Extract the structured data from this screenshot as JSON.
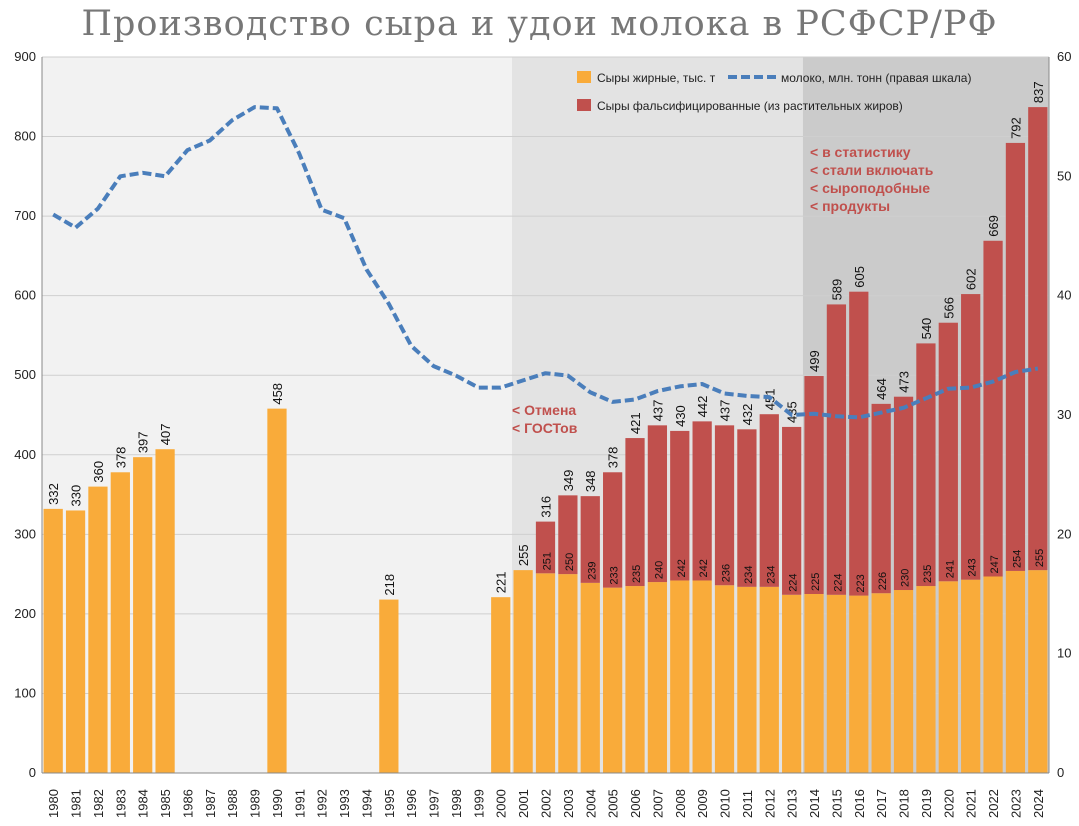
{
  "chart_data": {
    "type": "bar",
    "title": "Производство сыра и удои молока в РСФСР/РФ",
    "categories": [
      "1980",
      "1981",
      "1982",
      "1983",
      "1984",
      "1985",
      "1986",
      "1987",
      "1988",
      "1989",
      "1990",
      "1991",
      "1992",
      "1993",
      "1994",
      "1995",
      "1996",
      "1997",
      "1998",
      "1999",
      "2000",
      "2001",
      "2002",
      "2003",
      "2004",
      "2005",
      "2006",
      "2007",
      "2008",
      "2009",
      "2010",
      "2011",
      "2012",
      "2013",
      "2014",
      "2015",
      "2016",
      "2017",
      "2018",
      "2019",
      "2020",
      "2021",
      "2022",
      "2023",
      "2024"
    ],
    "series": [
      {
        "name": "Сыры жирные, тыс. т",
        "color": "#f9ab3a",
        "values": [
          332,
          330,
          360,
          378,
          397,
          407,
          null,
          null,
          null,
          null,
          458,
          null,
          null,
          null,
          null,
          218,
          null,
          null,
          null,
          null,
          221,
          255,
          251,
          250,
          239,
          233,
          235,
          240,
          242,
          242,
          236,
          234,
          234,
          224,
          225,
          224,
          223,
          226,
          230,
          235,
          241,
          243,
          247,
          254,
          255
        ],
        "labels": [
          "332",
          "330",
          "360",
          "378",
          "397",
          "407",
          "",
          "",
          "",
          "",
          "458",
          "",
          "",
          "",
          "",
          "218",
          "",
          "",
          "",
          "",
          "221",
          "255",
          "251",
          "250",
          "239",
          "233",
          "235",
          "240",
          "242",
          "242",
          "236",
          "234",
          "234",
          "224",
          "225",
          "224",
          "223",
          "226",
          "230",
          "235",
          "241",
          "243",
          "247",
          "254",
          "255"
        ]
      },
      {
        "name": "Сыры фальсифицированные (из растительных жиров)",
        "color": "#c0504d",
        "values": [
          null,
          null,
          null,
          null,
          null,
          null,
          null,
          null,
          null,
          null,
          null,
          null,
          null,
          null,
          null,
          null,
          null,
          null,
          null,
          null,
          null,
          null,
          65,
          99,
          109,
          145,
          186,
          197,
          188,
          200,
          201,
          198,
          217,
          211,
          274,
          365,
          382,
          238,
          243,
          305,
          325,
          359,
          422,
          538,
          582
        ],
        "totals": [
          null,
          null,
          null,
          null,
          null,
          null,
          null,
          null,
          null,
          null,
          null,
          null,
          null,
          null,
          null,
          null,
          null,
          null,
          null,
          null,
          null,
          null,
          316,
          349,
          348,
          378,
          421,
          437,
          430,
          442,
          437,
          432,
          451,
          435,
          499,
          589,
          605,
          464,
          473,
          540,
          566,
          602,
          669,
          792,
          837
        ],
        "total_labels": [
          "",
          "",
          "",
          "",
          "",
          "",
          "",
          "",
          "",
          "",
          "",
          "",
          "",
          "",
          "",
          "",
          "",
          "",
          "",
          "",
          "",
          "",
          "316",
          "349",
          "348",
          "378",
          "421",
          "437",
          "430",
          "442",
          "437",
          "432",
          "451",
          "435",
          "499",
          "589",
          "605",
          "464",
          "473",
          "540",
          "566",
          "602",
          "669",
          "792",
          "837"
        ]
      },
      {
        "name": "молоко, млн. тонн (правая шкала)",
        "color": "#4a7ebb",
        "axis": "right",
        "values": [
          46.8,
          45.7,
          47.3,
          50.0,
          50.3,
          50.0,
          52.2,
          53.0,
          54.7,
          55.8,
          55.7,
          51.9,
          47.2,
          46.5,
          42.2,
          39.3,
          35.8,
          34.1,
          33.3,
          32.3,
          32.3,
          32.9,
          33.5,
          33.3,
          31.9,
          31.1,
          31.3,
          32.0,
          32.4,
          32.6,
          31.8,
          31.6,
          31.5,
          30.0,
          30.1,
          29.9,
          29.8,
          30.2,
          30.6,
          31.4,
          32.2,
          32.3,
          32.8,
          33.6,
          33.9
        ]
      }
    ],
    "xlabel": "",
    "ylabel": "",
    "ylim": [
      0,
      900
    ],
    "yticks": [
      "0",
      "100",
      "200",
      "300",
      "400",
      "500",
      "600",
      "700",
      "800",
      "900"
    ],
    "y2lim": [
      0,
      60
    ],
    "y2ticks": [
      "0",
      "10",
      "20",
      "30",
      "40",
      "50",
      "60"
    ],
    "shaded_regions": [
      {
        "from": "1980",
        "to": "2000",
        "color": "#f2f2f2"
      },
      {
        "from": "2001",
        "to": "2013",
        "color": "#e3e3e3"
      },
      {
        "from": "2014",
        "to": "2024",
        "color": "#cbcbcb"
      }
    ],
    "legend_position": "top-right",
    "annotations": [
      {
        "lines": [
          "< Отмена",
          "< ГОСТов"
        ]
      },
      {
        "lines": [
          "< в статистику",
          "< стали включать",
          "< сыроподобные",
          "< продукты"
        ]
      }
    ]
  }
}
